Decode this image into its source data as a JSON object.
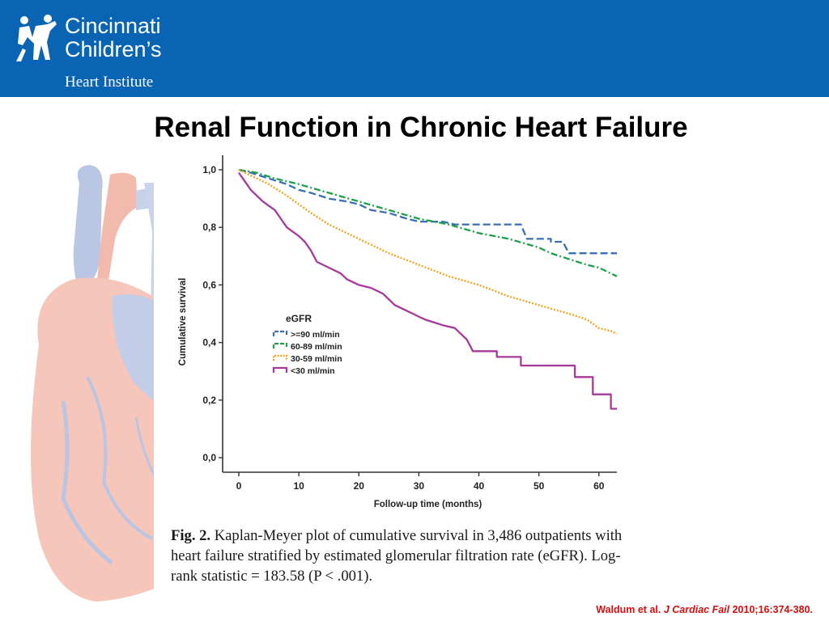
{
  "header": {
    "logo_line1": "Cincinnati",
    "logo_line2": "Children’s",
    "logo_line3": "Heart Institute"
  },
  "slide": {
    "title": "Renal Function in Chronic Heart Failure"
  },
  "caption": {
    "label": "Fig. 2.",
    "text": "Kaplan-Meyer plot of cumulative survival in 3,486 outpatients with heart failure stratified by estimated glomerular filtration rate (eGFR). Log-rank statistic = 183.58 (P < .001)."
  },
  "citation": {
    "authors": "Waldum et al.",
    "journal": "J Cardiac Fail",
    "details": "2010;16:374-380."
  },
  "colors": {
    "header_bg": "#0a64b4",
    "citation": "#d01010"
  },
  "chart_data": {
    "type": "line",
    "xlabel": "Follow-up time (months)",
    "ylabel": "Cumulative survival",
    "xlim": [
      0,
      63
    ],
    "ylim": [
      0,
      1
    ],
    "x_ticks": [
      0,
      10,
      20,
      30,
      40,
      50,
      60
    ],
    "x_tick_labels": [
      "0",
      "10",
      "20",
      "30",
      "40",
      "50",
      "60"
    ],
    "y_ticks": [
      0,
      0.2,
      0.4,
      0.6,
      0.8,
      1.0
    ],
    "y_tick_labels": [
      "0,0",
      "0,2",
      "0,4",
      "0,6",
      "0,8",
      "1,0"
    ],
    "legend_title": "eGFR",
    "legend_position": "lower-left",
    "grid": false,
    "series": [
      {
        "name": ">=90 ml/min",
        "color": "#3a6fb6",
        "dash": "long-dash",
        "points": [
          [
            0,
            1.0
          ],
          [
            2,
            0.99
          ],
          [
            5,
            0.97
          ],
          [
            8,
            0.95
          ],
          [
            10,
            0.93
          ],
          [
            12,
            0.92
          ],
          [
            15,
            0.9
          ],
          [
            18,
            0.89
          ],
          [
            20,
            0.88
          ],
          [
            22,
            0.86
          ],
          [
            25,
            0.85
          ],
          [
            28,
            0.83
          ],
          [
            30,
            0.82
          ],
          [
            34,
            0.82
          ],
          [
            36,
            0.81
          ],
          [
            40,
            0.81
          ],
          [
            45,
            0.81
          ],
          [
            47,
            0.81
          ],
          [
            48,
            0.76
          ],
          [
            52,
            0.76
          ],
          [
            52,
            0.75
          ],
          [
            54,
            0.75
          ],
          [
            55,
            0.71
          ],
          [
            63,
            0.71
          ]
        ]
      },
      {
        "name": "60-89 ml/min",
        "color": "#1ca04a",
        "dash": "dash-dot",
        "points": [
          [
            0,
            1.0
          ],
          [
            3,
            0.99
          ],
          [
            6,
            0.97
          ],
          [
            10,
            0.95
          ],
          [
            15,
            0.92
          ],
          [
            20,
            0.89
          ],
          [
            25,
            0.86
          ],
          [
            30,
            0.83
          ],
          [
            35,
            0.81
          ],
          [
            40,
            0.78
          ],
          [
            45,
            0.76
          ],
          [
            50,
            0.73
          ],
          [
            52,
            0.71
          ],
          [
            55,
            0.69
          ],
          [
            58,
            0.67
          ],
          [
            60,
            0.66
          ],
          [
            62,
            0.64
          ],
          [
            63,
            0.63
          ]
        ]
      },
      {
        "name": "30-59 ml/min",
        "color": "#f4a21a",
        "dash": "dotted",
        "points": [
          [
            0,
            1.0
          ],
          [
            2,
            0.98
          ],
          [
            5,
            0.95
          ],
          [
            8,
            0.91
          ],
          [
            10,
            0.88
          ],
          [
            12,
            0.85
          ],
          [
            15,
            0.81
          ],
          [
            18,
            0.78
          ],
          [
            20,
            0.76
          ],
          [
            25,
            0.71
          ],
          [
            30,
            0.67
          ],
          [
            35,
            0.63
          ],
          [
            40,
            0.6
          ],
          [
            45,
            0.56
          ],
          [
            50,
            0.53
          ],
          [
            55,
            0.5
          ],
          [
            58,
            0.48
          ],
          [
            60,
            0.45
          ],
          [
            62,
            0.44
          ],
          [
            63,
            0.43
          ]
        ]
      },
      {
        "name": "<30 ml/min",
        "color": "#a8389a",
        "dash": "solid",
        "points": [
          [
            0,
            0.99
          ],
          [
            1,
            0.96
          ],
          [
            2,
            0.93
          ],
          [
            3,
            0.91
          ],
          [
            4,
            0.89
          ],
          [
            6,
            0.86
          ],
          [
            7,
            0.83
          ],
          [
            8,
            0.8
          ],
          [
            10,
            0.77
          ],
          [
            11,
            0.75
          ],
          [
            12,
            0.72
          ],
          [
            13,
            0.68
          ],
          [
            15,
            0.66
          ],
          [
            17,
            0.64
          ],
          [
            18,
            0.62
          ],
          [
            20,
            0.6
          ],
          [
            22,
            0.59
          ],
          [
            24,
            0.57
          ],
          [
            26,
            0.53
          ],
          [
            28,
            0.51
          ],
          [
            30,
            0.49
          ],
          [
            31,
            0.48
          ],
          [
            34,
            0.46
          ],
          [
            36,
            0.45
          ],
          [
            38,
            0.41
          ],
          [
            39,
            0.37
          ],
          [
            43,
            0.37
          ],
          [
            43,
            0.35
          ],
          [
            47,
            0.35
          ],
          [
            47,
            0.32
          ],
          [
            56,
            0.32
          ],
          [
            56,
            0.28
          ],
          [
            59,
            0.28
          ],
          [
            59,
            0.22
          ],
          [
            62,
            0.22
          ],
          [
            62,
            0.17
          ],
          [
            63,
            0.17
          ]
        ]
      }
    ]
  }
}
